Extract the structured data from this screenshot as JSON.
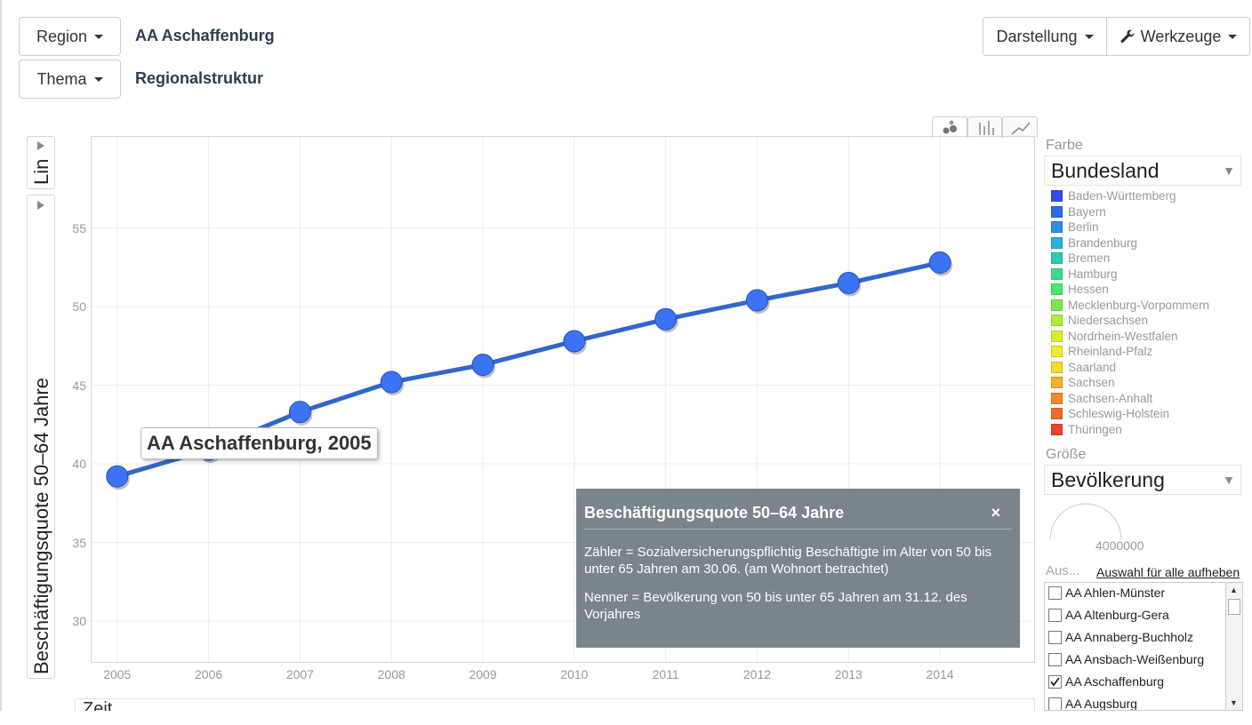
{
  "toolbar": {
    "region_button": "Region",
    "region_value": "AA Aschaffenburg",
    "theme_button": "Thema",
    "theme_value": "Regionalstruktur",
    "display_button": "Darstellung",
    "tools_button": "Werkzeuge"
  },
  "axis_controls": {
    "scale_selector": "Lin",
    "y_axis_label": "Beschäftigungsquote 50–64 Jahre"
  },
  "chart_view_tabs": [
    "bubble-chart-icon",
    "bar-chart-icon",
    "line-chart-icon"
  ],
  "chart_data": {
    "type": "line",
    "title": "",
    "xlabel": "",
    "ylabel": "Beschäftigungsquote 50–64 Jahre",
    "x": [
      2005,
      2006,
      2007,
      2008,
      2009,
      2010,
      2011,
      2012,
      2013,
      2014
    ],
    "series": [
      {
        "name": "AA Aschaffenburg",
        "values": [
          39.2,
          40.9,
          43.3,
          45.2,
          46.3,
          47.8,
          49.2,
          50.4,
          51.5,
          52.8
        ]
      }
    ],
    "xticks": [
      "2005",
      "2006",
      "2007",
      "2008",
      "2009",
      "2010",
      "2011",
      "2012",
      "2013",
      "2014"
    ],
    "yticks": [
      "30",
      "35",
      "40",
      "45",
      "50",
      "55"
    ],
    "ylim": [
      27.4,
      60.8
    ],
    "xlim": [
      2004.72,
      2015.03
    ],
    "grid": true,
    "series_color": "#3366cc",
    "point_color": "#3b73f5",
    "point_label": "AA Aschaffenburg, 2005"
  },
  "tooltip": {
    "title": "Beschäftigungsquote 50–64 Jahre",
    "close": "×",
    "paragraph1": "Zähler = Sozialversicherungspflichtig Beschäftigte im Alter von 50 bis unter 65 Jahren am 30.06. (am Wohnort betrachtet)",
    "paragraph2": "Nenner = Bevölkerung von 50 bis unter 65 Jahren am 31.12. des Vorjahres"
  },
  "sidebar": {
    "color_label": "Farbe",
    "color_select": "Bundesland",
    "legend": [
      {
        "label": "Baden-Württemberg",
        "color": "#2f4ff0"
      },
      {
        "label": "Bayern",
        "color": "#2b6be8"
      },
      {
        "label": "Berlin",
        "color": "#2a8ee8"
      },
      {
        "label": "Brandenburg",
        "color": "#26b1e0"
      },
      {
        "label": "Bremen",
        "color": "#2cc8b8"
      },
      {
        "label": "Hamburg",
        "color": "#36dc8c"
      },
      {
        "label": "Hessen",
        "color": "#4ae868"
      },
      {
        "label": "Mecklenburg-Vorpommern",
        "color": "#7ae84a"
      },
      {
        "label": "Niedersachsen",
        "color": "#b0ec36"
      },
      {
        "label": "Nordrhein-Westfalen",
        "color": "#d8ee2c"
      },
      {
        "label": "Rheinland-Pfalz",
        "color": "#f2ec2a"
      },
      {
        "label": "Saarland",
        "color": "#f8da2a"
      },
      {
        "label": "Sachsen",
        "color": "#f6b02a"
      },
      {
        "label": "Sachsen-Anhalt",
        "color": "#f28a2a"
      },
      {
        "label": "Schleswig-Holstein",
        "color": "#ec6a2a"
      },
      {
        "label": "Thüringen",
        "color": "#e8442a"
      }
    ],
    "size_label": "Größe",
    "size_select": "Bevölkerung",
    "size_value": "4000000",
    "selection_label": "Aus...",
    "clear_selection_link": "Auswahl für alle aufheben",
    "regions": [
      {
        "label": "AA Ahlen-Münster",
        "checked": false
      },
      {
        "label": "AA Altenburg-Gera",
        "checked": false
      },
      {
        "label": "AA Annaberg-Buchholz",
        "checked": false
      },
      {
        "label": "AA Ansbach-Weißenburg",
        "checked": false
      },
      {
        "label": "AA Aschaffenburg",
        "checked": true
      },
      {
        "label": "AA Augsburg",
        "checked": false
      }
    ]
  },
  "bottom_panel_label": "Zeit"
}
